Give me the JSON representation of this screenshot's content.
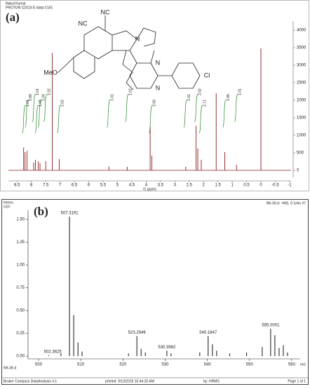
{
  "chart_data": [
    {
      "type": "nmr",
      "label": "(a)",
      "header": [
        "Nakul Kumar",
        "PROTON CDCl3 E:\\data CUG"
      ],
      "xlabel": "f1 (ppm)",
      "color": "#8b1a1a",
      "integral_color": "#2e8b2e",
      "x": [
        8.27,
        8.22,
        8.15,
        7.92,
        7.86,
        7.76,
        7.7,
        7.5,
        7.27,
        7.03,
        5.3,
        4.66,
        3.86,
        3.8,
        2.62,
        2.26,
        2.2,
        2.08,
        1.56,
        1.26,
        0.85,
        0.0
      ],
      "values": [
        650,
        520,
        560,
        220,
        300,
        260,
        210,
        260,
        3350,
        320,
        110,
        100,
        1250,
        420,
        100,
        1270,
        620,
        300,
        2200,
        520,
        160,
        3480
      ],
      "integrals": [
        {
          "ppm": 8.25,
          "label": "1.01"
        },
        {
          "ppm": 8.15,
          "label": "0.99"
        },
        {
          "ppm": 7.9,
          "label": "1.01"
        },
        {
          "ppm": 7.8,
          "label": "1.08"
        },
        {
          "ppm": 7.7,
          "label": "1.04"
        },
        {
          "ppm": 7.5,
          "label": "1.02"
        },
        {
          "ppm": 7.03,
          "label": "2.02"
        },
        {
          "ppm": 5.3,
          "label": "1.01"
        },
        {
          "ppm": 4.66,
          "label": "1.02"
        },
        {
          "ppm": 3.83,
          "label": "3.00"
        },
        {
          "ppm": 2.62,
          "label": "1.01"
        },
        {
          "ppm": 2.24,
          "label": "2.02"
        },
        {
          "ppm": 2.08,
          "label": "2.71"
        },
        {
          "ppm": 1.26,
          "label": "1.95"
        },
        {
          "ppm": 0.85,
          "label": "1.01"
        }
      ],
      "xlim": [
        8.8,
        -1.05
      ],
      "xticks": [
        8.5,
        8.0,
        7.5,
        7.0,
        6.5,
        6.0,
        5.5,
        5.0,
        4.5,
        4.0,
        3.5,
        3.0,
        2.5,
        2.0,
        1.5,
        1.0,
        0.5,
        0.0,
        -0.5,
        -1.0
      ],
      "ylim": [
        -200,
        4260
      ],
      "yticks": [
        0,
        500,
        1000,
        1500,
        2000,
        2500,
        3000,
        3500,
        4000
      ],
      "structure_labels": [
        "NC",
        "NC",
        "N",
        "MeO",
        "N",
        "N",
        "Cl"
      ]
    },
    {
      "type": "ms",
      "label": "(b)",
      "ylabel": "Intens.",
      "yunit": "x10⁵",
      "run": "NK-06.d: +MS, 0.1min #7",
      "sample": "NK-06.d",
      "xlabel": "m/z",
      "color": "#111",
      "labeled_peaks": {
        "x": [
          502.3625,
          507.3191,
          523.2946,
          530.3962,
          540.1847,
          555.0001
        ],
        "values": [
          0.01,
          1.53,
          0.22,
          0.06,
          0.22,
          0.3
        ]
      },
      "other_peaks": {
        "x": [
          505.3,
          508.32,
          509.33,
          510.3,
          521.3,
          524.3,
          525.3,
          531.4,
          538.2,
          541.2,
          542.2,
          545.3,
          549.3,
          553.0,
          556.0,
          557.0,
          558.0,
          559.0
        ],
        "values": [
          0.03,
          0.45,
          0.15,
          0.05,
          0.03,
          0.08,
          0.04,
          0.03,
          0.04,
          0.13,
          0.06,
          0.03,
          0.04,
          0.1,
          0.23,
          0.09,
          0.12,
          0.04
        ]
      },
      "xlim": [
        497.5,
        562
      ],
      "xticks": [
        500,
        510,
        520,
        530,
        540,
        550,
        560
      ],
      "ylim": [
        -0.03,
        1.6
      ],
      "yticks": [
        {
          "value": 0,
          "label": "0.00"
        },
        {
          "value": 0.25,
          "label": "0.25"
        },
        {
          "value": 0.5,
          "label": "0.50"
        },
        {
          "value": 0.75,
          "label": "0.75"
        },
        {
          "value": 1,
          "label": "1.00"
        },
        {
          "value": 1.25,
          "label": "1.25"
        },
        {
          "value": 1.5,
          "label": "1.50"
        }
      ],
      "footer": [
        "Bruker Compass DataAnalysis 4.1",
        "printed:   9/13/2019 10:44:25 AM",
        "by:   HRMS",
        "Page 1 of 1"
      ]
    }
  ]
}
